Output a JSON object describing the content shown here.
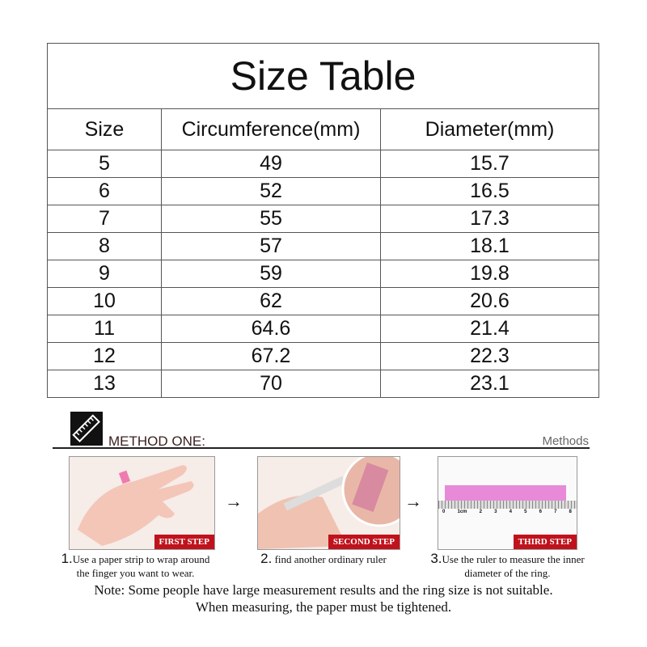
{
  "title": "Size Table",
  "headers": [
    "Size",
    "Circumference(mm)",
    "Diameter(mm)"
  ],
  "rows": [
    [
      "5",
      "49",
      "15.7"
    ],
    [
      "6",
      "52",
      "16.5"
    ],
    [
      "7",
      "55",
      "17.3"
    ],
    [
      "8",
      "57",
      "18.1"
    ],
    [
      "9",
      "59",
      "19.8"
    ],
    [
      "10",
      "62",
      "20.6"
    ],
    [
      "11",
      "64.6",
      "21.4"
    ],
    [
      "12",
      "67.2",
      "22.3"
    ],
    [
      "13",
      "70",
      "23.1"
    ]
  ],
  "method": {
    "title": "METHOD ONE:",
    "side_label": "Methods",
    "icon": "ruler-icon",
    "steps": [
      {
        "badge": "FIRST STEP",
        "num": "1.",
        "text1": "Use a paper strip to wrap around",
        "text2": "the finger you want to wear."
      },
      {
        "badge": "SECOND STEP",
        "num": "2.",
        "text1": " find another ordinary ruler",
        "text2": ""
      },
      {
        "badge": "THIRD STEP",
        "num": "3.",
        "text1": "Use the ruler to measure the inner",
        "text2": "diameter of the ring."
      }
    ],
    "arrow": "→",
    "ruler_labels": [
      "0",
      "1cm",
      "2",
      "3",
      "4",
      "5",
      "6",
      "7",
      "8"
    ]
  },
  "note": {
    "line1": "Note: Some people have large measurement results and the ring size is not suitable.",
    "line2": "When measuring, the paper must be tightened."
  },
  "colors": {
    "badge": "#c0121c",
    "strip": "#e88ad8"
  }
}
